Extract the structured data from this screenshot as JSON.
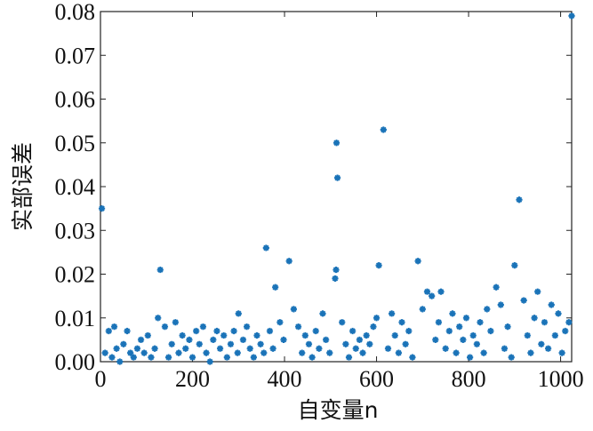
{
  "chart_data": {
    "type": "scatter",
    "xlabel": "自变量n",
    "ylabel": "实部误差",
    "color": "#1a73b8",
    "xlim": [
      0,
      1024
    ],
    "ylim": [
      0,
      0.08
    ],
    "xticks": [
      0,
      200,
      400,
      600,
      800,
      1000
    ],
    "yticks": [
      {
        "value": 0,
        "label": "0.00"
      },
      {
        "value": 0.01,
        "label": "0.01"
      },
      {
        "value": 0.02,
        "label": "0.02"
      },
      {
        "value": 0.03,
        "label": "0.03"
      },
      {
        "value": 0.04,
        "label": "0.04"
      },
      {
        "value": 0.05,
        "label": "0.05"
      },
      {
        "value": 0.06,
        "label": "0.06"
      },
      {
        "value": 0.07,
        "label": "0.07"
      },
      {
        "value": 0.08,
        "label": "0.08"
      }
    ],
    "x": [
      3,
      130,
      360,
      380,
      410,
      510,
      512,
      513,
      515,
      605,
      615,
      690,
      900,
      910,
      1024,
      710,
      740,
      860,
      950,
      30,
      125,
      300,
      420,
      10,
      18,
      25,
      35,
      42,
      50,
      58,
      65,
      72,
      80,
      88,
      95,
      103,
      110,
      118,
      140,
      148,
      155,
      163,
      170,
      178,
      185,
      193,
      200,
      208,
      215,
      223,
      230,
      238,
      245,
      253,
      260,
      268,
      275,
      283,
      290,
      298,
      310,
      318,
      325,
      333,
      340,
      348,
      355,
      368,
      375,
      390,
      398,
      430,
      438,
      445,
      453,
      460,
      468,
      475,
      483,
      490,
      498,
      525,
      533,
      540,
      548,
      555,
      563,
      570,
      578,
      585,
      593,
      600,
      625,
      633,
      640,
      648,
      655,
      663,
      670,
      678,
      700,
      720,
      728,
      735,
      750,
      758,
      765,
      773,
      780,
      788,
      795,
      803,
      810,
      818,
      825,
      833,
      840,
      848,
      870,
      878,
      885,
      893,
      920,
      928,
      935,
      943,
      958,
      965,
      973,
      980,
      988,
      995,
      1003,
      1010,
      1018
    ],
    "y": [
      0.035,
      0.021,
      0.026,
      0.017,
      0.023,
      0.019,
      0.021,
      0.05,
      0.042,
      0.022,
      0.053,
      0.023,
      0.022,
      0.037,
      0.079,
      0.016,
      0.016,
      0.017,
      0.016,
      0.008,
      0.01,
      0.011,
      0.012,
      0.002,
      0.007,
      0.001,
      0.003,
      0.0,
      0.004,
      0.007,
      0.002,
      0.001,
      0.003,
      0.005,
      0.002,
      0.006,
      0.001,
      0.003,
      0.008,
      0.001,
      0.004,
      0.009,
      0.002,
      0.006,
      0.003,
      0.005,
      0.001,
      0.007,
      0.004,
      0.008,
      0.002,
      0.0,
      0.005,
      0.007,
      0.003,
      0.006,
      0.001,
      0.004,
      0.007,
      0.002,
      0.005,
      0.008,
      0.003,
      0.001,
      0.006,
      0.004,
      0.002,
      0.007,
      0.003,
      0.009,
      0.005,
      0.008,
      0.002,
      0.006,
      0.004,
      0.001,
      0.007,
      0.003,
      0.011,
      0.005,
      0.002,
      0.009,
      0.004,
      0.001,
      0.007,
      0.003,
      0.005,
      0.002,
      0.006,
      0.004,
      0.008,
      0.01,
      0.003,
      0.011,
      0.006,
      0.002,
      0.009,
      0.004,
      0.007,
      0.001,
      0.012,
      0.015,
      0.005,
      0.009,
      0.003,
      0.007,
      0.011,
      0.002,
      0.008,
      0.005,
      0.01,
      0.001,
      0.006,
      0.004,
      0.009,
      0.002,
      0.012,
      0.007,
      0.013,
      0.003,
      0.008,
      0.001,
      0.014,
      0.006,
      0.002,
      0.01,
      0.004,
      0.009,
      0.003,
      0.013,
      0.006,
      0.011,
      0.002,
      0.007,
      0.009
    ]
  }
}
